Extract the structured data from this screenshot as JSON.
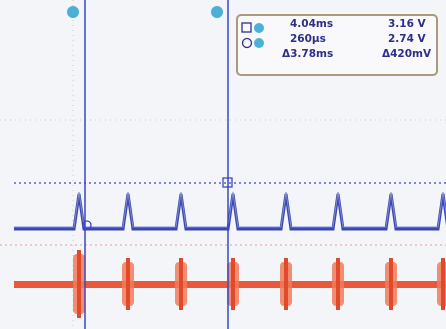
{
  "cursor_readout": {
    "rows": [
      [
        "4.04ms",
        "3.16 V"
      ],
      [
        "260µs",
        "2.74 V"
      ],
      [
        "Δ3.78ms",
        "Δ420mV"
      ]
    ]
  }
}
